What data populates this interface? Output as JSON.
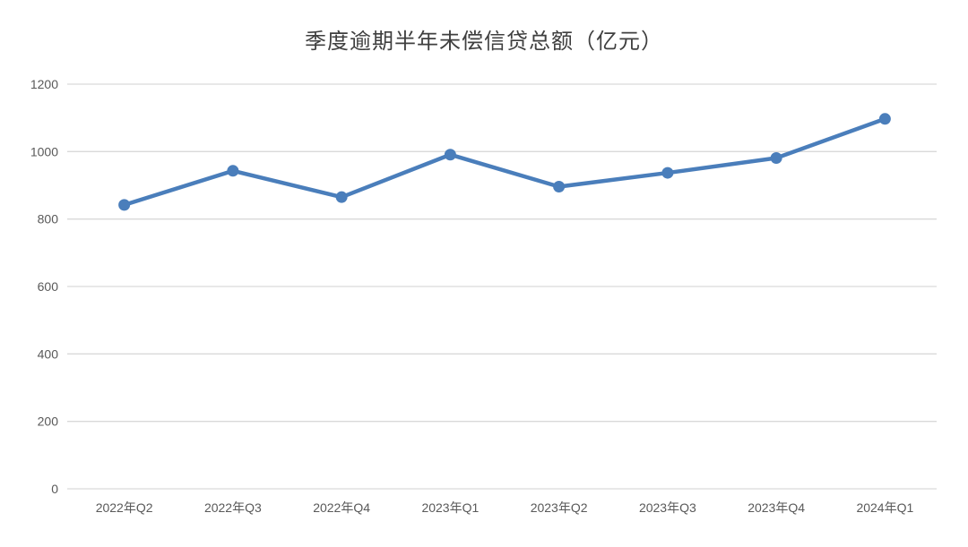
{
  "chart_data": {
    "type": "line",
    "title": "季度逾期半年未偿信贷总额（亿元）",
    "categories": [
      "2022年Q2",
      "2022年Q3",
      "2022年Q4",
      "2023年Q1",
      "2023年Q2",
      "2023年Q3",
      "2023年Q4",
      "2024年Q1"
    ],
    "series": [
      {
        "name": "季度逾期半年未偿信贷总额",
        "values": [
          842,
          943,
          865,
          991,
          896,
          937,
          981,
          1097
        ]
      }
    ],
    "xlabel": "",
    "ylabel": "",
    "ylim": [
      0,
      1200
    ],
    "ytick_interval": 200,
    "ytick_labels": [
      "0",
      "200",
      "400",
      "600",
      "800",
      "1000",
      "1200"
    ],
    "grid": true,
    "legend_position": "none",
    "colors": {
      "line": "#4A7EBB",
      "marker": "#4A7EBB",
      "gridline": "#D9D9D9",
      "axis_text": "#595959",
      "title_text": "#3F3F3F",
      "background": "#FFFFFF"
    }
  }
}
